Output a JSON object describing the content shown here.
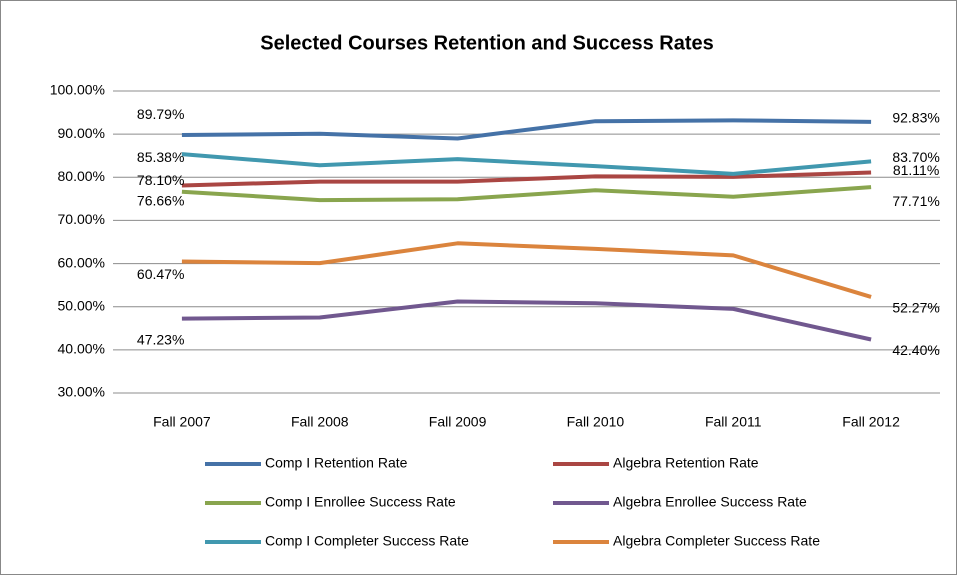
{
  "chart_data": {
    "type": "line",
    "title": "Selected Courses Retention and Success Rates",
    "categories": [
      "Fall 2007",
      "Fall 2008",
      "Fall 2009",
      "Fall 2010",
      "Fall 2011",
      "Fall 2012"
    ],
    "ylim": [
      30,
      100
    ],
    "yticks": [
      {
        "value": 30,
        "label": "30.00%"
      },
      {
        "value": 40,
        "label": "40.00%"
      },
      {
        "value": 50,
        "label": "50.00%"
      },
      {
        "value": 60,
        "label": "60.00%"
      },
      {
        "value": 70,
        "label": "70.00%"
      },
      {
        "value": 80,
        "label": "80.00%"
      },
      {
        "value": 90,
        "label": "90.00%"
      },
      {
        "value": 100,
        "label": "100.00%"
      }
    ],
    "grid": true,
    "legend": "bottom",
    "series": [
      {
        "name": "Comp I Retention Rate",
        "color": "#4572a7",
        "values": [
          89.79,
          90.1,
          89.0,
          93.0,
          93.2,
          92.83
        ],
        "value_labels": [
          "89.79%",
          null,
          null,
          null,
          null,
          "92.83%"
        ]
      },
      {
        "name": "Algebra Retention Rate",
        "color": "#aa4643",
        "values": [
          78.1,
          79.0,
          79.0,
          80.2,
          80.1,
          81.11
        ],
        "value_labels": [
          "78.10%",
          null,
          null,
          null,
          null,
          "81.11%"
        ]
      },
      {
        "name": "Comp I Enrollee Success Rate",
        "color": "#89a54e",
        "values": [
          76.66,
          74.7,
          74.9,
          77.0,
          75.5,
          77.71
        ],
        "value_labels": [
          "76.66%",
          null,
          null,
          null,
          null,
          "77.71%"
        ]
      },
      {
        "name": "Algebra Enrollee Success Rate",
        "color": "#71588f",
        "values": [
          47.23,
          47.5,
          51.2,
          50.8,
          49.5,
          42.4
        ],
        "value_labels": [
          "47.23%",
          null,
          null,
          null,
          null,
          "42.40%"
        ]
      },
      {
        "name": "Comp I Completer Success Rate",
        "color": "#4198af",
        "values": [
          85.38,
          82.8,
          84.2,
          82.6,
          80.8,
          83.7
        ],
        "value_labels": [
          "85.38%",
          null,
          null,
          null,
          null,
          "83.70%"
        ]
      },
      {
        "name": "Algebra Completer Success Rate",
        "color": "#db843d",
        "values": [
          60.47,
          60.1,
          64.7,
          63.4,
          61.9,
          52.27
        ],
        "value_labels": [
          "60.47%",
          null,
          null,
          null,
          null,
          "52.27%"
        ]
      }
    ]
  }
}
